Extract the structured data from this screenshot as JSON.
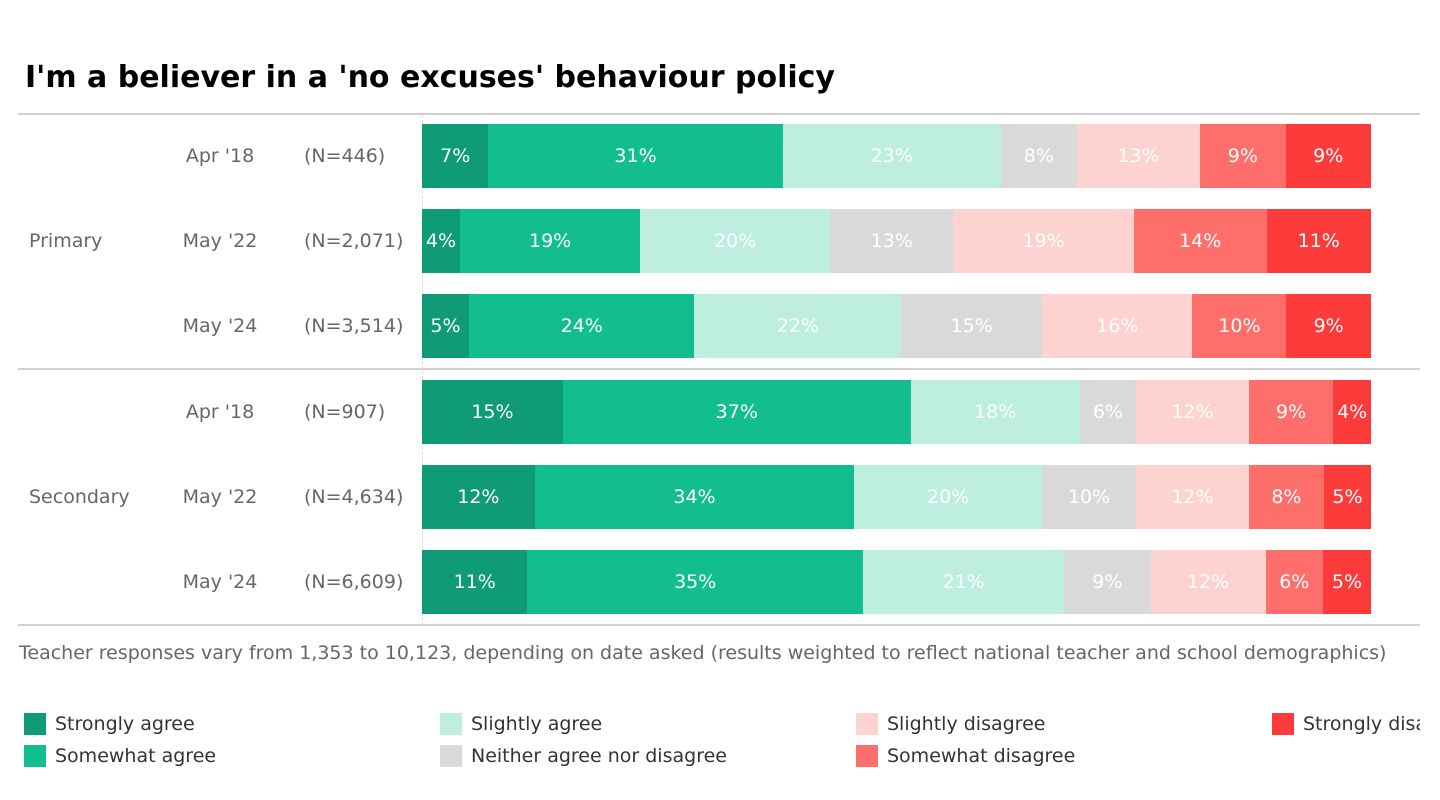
{
  "chart_data": {
    "type": "bar",
    "orientation": "horizontal",
    "stacked": true,
    "title": "I'm a believer in a 'no excuses' behaviour policy",
    "footnote": "Teacher responses vary from 1,353 to 10,123, depending on date asked (results weighted to reflect national teacher and school demographics)",
    "series": [
      {
        "name": "Strongly agree",
        "color": "#0f9b78"
      },
      {
        "name": "Somewhat agree",
        "color": "#12be8f"
      },
      {
        "name": "Slightly agree",
        "color": "#bdeee0"
      },
      {
        "name": "Neither agree nor disagree",
        "color": "#d9d9d9"
      },
      {
        "name": "Slightly disagree",
        "color": "#fdd3d1"
      },
      {
        "name": "Somewhat disagree",
        "color": "#fe6f6b"
      },
      {
        "name": "Strongly disagree",
        "color": "#fe3b3b"
      }
    ],
    "groups": [
      {
        "name": "Primary",
        "rows": [
          {
            "date": "Apr '18",
            "n": "(N=446)",
            "values": [
              7,
              31,
              23,
              8,
              13,
              9,
              9
            ]
          },
          {
            "date": "May '22",
            "n": "(N=2,071)",
            "values": [
              4,
              19,
              20,
              13,
              19,
              14,
              11
            ]
          },
          {
            "date": "May '24",
            "n": "(N=3,514)",
            "values": [
              5,
              24,
              22,
              15,
              16,
              10,
              9
            ]
          }
        ]
      },
      {
        "name": "Secondary",
        "rows": [
          {
            "date": "Apr '18",
            "n": "(N=907)",
            "values": [
              15,
              37,
              18,
              6,
              12,
              9,
              4
            ]
          },
          {
            "date": "May '22",
            "n": "(N=4,634)",
            "values": [
              12,
              34,
              20,
              10,
              12,
              8,
              5
            ]
          },
          {
            "date": "May '24",
            "n": "(N=6,609)",
            "values": [
              11,
              35,
              21,
              9,
              12,
              6,
              5
            ]
          }
        ]
      }
    ],
    "unit": "%",
    "legend_position": "bottom"
  }
}
